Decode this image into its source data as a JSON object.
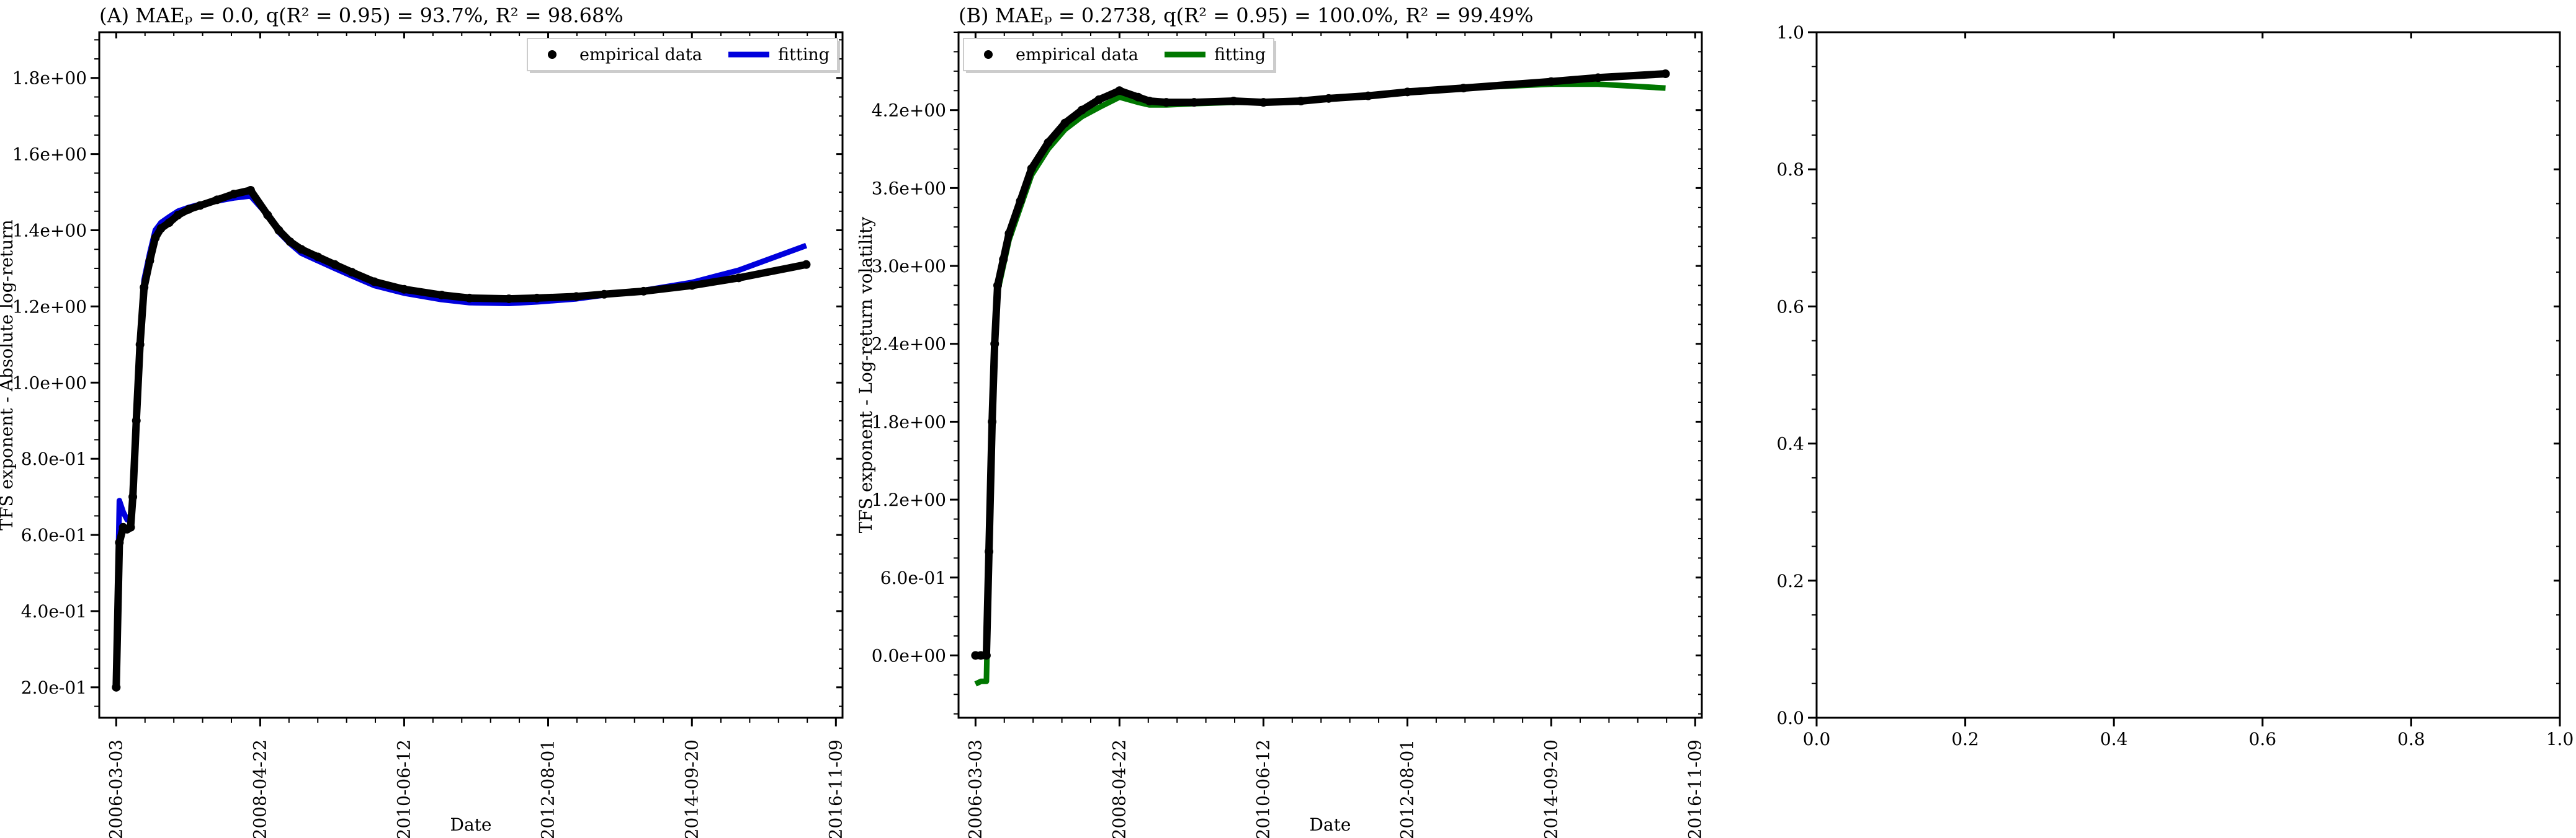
{
  "chart_data": [
    {
      "type": "scatter",
      "title": "(A) MAEₚ = 0.0, q(R² = 0.95) = 93.7%, R² = 98.68%",
      "xlabel": "Date",
      "ylabel": "TFS exponent - Absolute log-return",
      "x_ticks": [
        "2006-03-03",
        "2008-04-22",
        "2010-06-12",
        "2012-08-01",
        "2014-09-20",
        "2016-11-09"
      ],
      "y_ticks": [
        "2.0e-01",
        "4.0e-01",
        "6.0e-01",
        "8.0e-01",
        "1.0e+00",
        "1.2e+00",
        "1.4e+00",
        "1.6e+00",
        "1.8e+00"
      ],
      "xlim": [
        "2005-12-01",
        "2016-12-15"
      ],
      "ylim": [
        0.12,
        1.92
      ],
      "legend": "top-right",
      "series": [
        {
          "name": "empirical data",
          "color": "#000000",
          "x": [
            "2006-03-03",
            "2006-03-20",
            "2006-04-10",
            "2006-05-01",
            "2006-05-20",
            "2006-06-01",
            "2006-06-20",
            "2006-07-10",
            "2006-08-01",
            "2006-09-01",
            "2006-10-01",
            "2006-11-01",
            "2006-12-15",
            "2007-02-01",
            "2007-04-01",
            "2007-06-01",
            "2007-09-01",
            "2007-12-01",
            "2008-03-01",
            "2008-06-01",
            "2008-08-01",
            "2008-10-01",
            "2008-12-01",
            "2009-03-01",
            "2009-06-01",
            "2009-09-01",
            "2010-01-01",
            "2010-06-12",
            "2011-01-01",
            "2011-06-01",
            "2012-01-01",
            "2012-06-01",
            "2013-01-01",
            "2013-06-01",
            "2014-01-01",
            "2014-09-20",
            "2015-06-01",
            "2016-06-01"
          ],
          "y": [
            0.2,
            0.58,
            0.62,
            0.615,
            0.62,
            0.7,
            0.9,
            1.1,
            1.25,
            1.32,
            1.38,
            1.405,
            1.42,
            1.44,
            1.455,
            1.465,
            1.48,
            1.495,
            1.505,
            1.44,
            1.4,
            1.37,
            1.35,
            1.33,
            1.31,
            1.29,
            1.265,
            1.245,
            1.23,
            1.222,
            1.22,
            1.222,
            1.226,
            1.232,
            1.24,
            1.255,
            1.275,
            1.31
          ]
        },
        {
          "name": "fitting",
          "color": "#0000dd",
          "x": [
            "2006-03-03",
            "2006-03-20",
            "2006-04-10",
            "2006-05-01",
            "2006-05-20",
            "2006-06-01",
            "2006-06-20",
            "2006-07-10",
            "2006-08-01",
            "2006-09-01",
            "2006-10-01",
            "2006-11-01",
            "2006-12-15",
            "2007-02-01",
            "2007-04-01",
            "2007-06-01",
            "2007-09-01",
            "2007-12-01",
            "2008-03-01",
            "2008-06-01",
            "2008-08-01",
            "2008-10-01",
            "2008-12-01",
            "2009-03-01",
            "2009-06-01",
            "2009-09-01",
            "2010-01-01",
            "2010-06-12",
            "2011-01-01",
            "2011-06-01",
            "2012-01-01",
            "2012-06-01",
            "2013-01-01",
            "2013-06-01",
            "2014-01-01",
            "2014-09-20",
            "2015-06-01",
            "2016-06-01"
          ],
          "y": [
            0.24,
            0.69,
            0.66,
            0.64,
            0.64,
            0.72,
            0.92,
            1.12,
            1.27,
            1.34,
            1.4,
            1.42,
            1.435,
            1.45,
            1.46,
            1.468,
            1.477,
            1.485,
            1.49,
            1.44,
            1.395,
            1.365,
            1.34,
            1.32,
            1.3,
            1.28,
            1.255,
            1.235,
            1.218,
            1.21,
            1.208,
            1.212,
            1.22,
            1.23,
            1.242,
            1.263,
            1.295,
            1.36
          ]
        }
      ]
    },
    {
      "type": "scatter",
      "title": "(B) MAEₚ = 0.2738, q(R² = 0.95) = 100.0%, R² = 99.49%",
      "xlabel": "Date",
      "ylabel": "TFS exponent - Log-return volatility",
      "x_ticks": [
        "2006-03-03",
        "2008-04-22",
        "2010-06-12",
        "2012-08-01",
        "2014-09-20",
        "2016-11-09"
      ],
      "y_ticks": [
        "0.0e+00",
        "6.0e-01",
        "1.2e+00",
        "1.8e+00",
        "2.4e+00",
        "3.0e+00",
        "3.6e+00",
        "4.2e+00"
      ],
      "xlim": [
        "2005-12-01",
        "2016-12-15"
      ],
      "ylim": [
        -0.48,
        4.8
      ],
      "legend": "top-left",
      "series": [
        {
          "name": "empirical data",
          "color": "#000000",
          "x": [
            "2006-03-03",
            "2006-04-01",
            "2006-05-01",
            "2006-05-15",
            "2006-06-01",
            "2006-06-15",
            "2006-07-01",
            "2006-08-01",
            "2006-09-01",
            "2006-11-01",
            "2007-01-01",
            "2007-04-01",
            "2007-07-01",
            "2007-10-01",
            "2008-01-01",
            "2008-04-22",
            "2008-08-01",
            "2008-10-01",
            "2009-01-01",
            "2009-06-01",
            "2010-01-01",
            "2010-06-12",
            "2011-01-01",
            "2011-06-01",
            "2012-01-01",
            "2012-08-01",
            "2013-06-01",
            "2014-09-20",
            "2015-06-01",
            "2016-06-01"
          ],
          "y": [
            0,
            0,
            0,
            0.8,
            1.8,
            2.4,
            2.85,
            3.05,
            3.25,
            3.5,
            3.75,
            3.95,
            4.1,
            4.2,
            4.28,
            4.35,
            4.3,
            4.27,
            4.26,
            4.26,
            4.27,
            4.26,
            4.27,
            4.29,
            4.31,
            4.34,
            4.37,
            4.42,
            4.45,
            4.48
          ]
        },
        {
          "name": "fitting",
          "color": "#007700",
          "x": [
            "2006-03-03",
            "2006-04-01",
            "2006-05-01",
            "2006-05-15",
            "2006-06-01",
            "2006-06-15",
            "2006-07-01",
            "2006-08-01",
            "2006-09-01",
            "2006-11-01",
            "2007-01-01",
            "2007-04-01",
            "2007-07-01",
            "2007-10-01",
            "2008-01-01",
            "2008-04-22",
            "2008-08-01",
            "2008-10-01",
            "2009-01-01",
            "2009-06-01",
            "2010-01-01",
            "2010-06-12",
            "2011-01-01",
            "2011-06-01",
            "2012-01-01",
            "2012-08-01",
            "2013-06-01",
            "2014-09-20",
            "2015-06-01",
            "2016-06-01"
          ],
          "y": [
            -0.22,
            -0.2,
            -0.2,
            0.75,
            1.75,
            2.35,
            2.8,
            3.0,
            3.2,
            3.45,
            3.7,
            3.9,
            4.05,
            4.15,
            4.22,
            4.3,
            4.26,
            4.24,
            4.24,
            4.25,
            4.26,
            4.26,
            4.27,
            4.29,
            4.31,
            4.34,
            4.37,
            4.4,
            4.4,
            4.37
          ]
        }
      ]
    },
    {
      "type": "scatter",
      "title": "",
      "xlabel": "",
      "ylabel": "",
      "x_ticks": [
        "0.0",
        "0.2",
        "0.4",
        "0.6",
        "0.8",
        "1.0"
      ],
      "y_ticks": [
        "0.0",
        "0.2",
        "0.4",
        "0.6",
        "0.8",
        "1.0"
      ],
      "xlim": [
        0,
        1
      ],
      "ylim": [
        0,
        1
      ],
      "series": []
    }
  ]
}
